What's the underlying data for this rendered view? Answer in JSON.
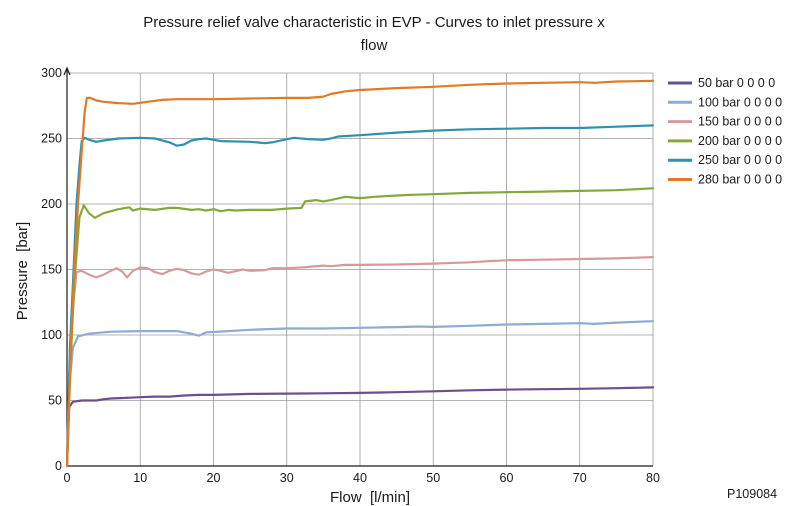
{
  "chart_data": {
    "type": "line",
    "title_lines": [
      "Pressure relief valve characteristic in EVP - Curves to inlet pressure x",
      "flow"
    ],
    "xlabel": "Flow  [l/min]",
    "ylabel": "Pressure  [bar]",
    "xlim": [
      0,
      80
    ],
    "ylim": [
      0,
      300
    ],
    "x_ticks": [
      "0",
      "10",
      "20",
      "30",
      "40",
      "50",
      "60",
      "70",
      "80"
    ],
    "y_ticks": [
      "0",
      "50",
      "100",
      "150",
      "200",
      "250",
      "300"
    ],
    "grid": true,
    "legend_position": "right",
    "reference_code": "P109084",
    "series": [
      {
        "name": "50 bar 0 0 0 0",
        "color": "#6b4f8e",
        "points": [
          [
            0,
            0
          ],
          [
            0.3,
            45
          ],
          [
            0.8,
            49
          ],
          [
            2,
            50
          ],
          [
            4,
            50
          ],
          [
            5,
            51
          ],
          [
            6,
            51.5
          ],
          [
            8,
            52
          ],
          [
            10,
            52.5
          ],
          [
            12,
            53
          ],
          [
            14,
            53
          ],
          [
            16,
            53.8
          ],
          [
            18,
            54.3
          ],
          [
            20,
            54.3
          ],
          [
            22,
            54.6
          ],
          [
            25,
            55
          ],
          [
            30,
            55.3
          ],
          [
            35,
            55.5
          ],
          [
            40,
            55.8
          ],
          [
            45,
            56.3
          ],
          [
            50,
            57
          ],
          [
            55,
            57.8
          ],
          [
            60,
            58.3
          ],
          [
            65,
            58.6
          ],
          [
            70,
            58.9
          ],
          [
            75,
            59.4
          ],
          [
            80,
            60
          ]
        ]
      },
      {
        "name": "100 bar 0 0 0 0",
        "color": "#8faad5",
        "points": [
          [
            0,
            0
          ],
          [
            0.3,
            60
          ],
          [
            0.8,
            90
          ],
          [
            1.5,
            99
          ],
          [
            3,
            101
          ],
          [
            6,
            102.5
          ],
          [
            10,
            103
          ],
          [
            15,
            103
          ],
          [
            17,
            101
          ],
          [
            18,
            99.5
          ],
          [
            19,
            102
          ],
          [
            22,
            103
          ],
          [
            25,
            104
          ],
          [
            30,
            105
          ],
          [
            35,
            105
          ],
          [
            40,
            105.5
          ],
          [
            45,
            106
          ],
          [
            48,
            106.5
          ],
          [
            50,
            106.2
          ],
          [
            55,
            107
          ],
          [
            60,
            108
          ],
          [
            65,
            108.5
          ],
          [
            70,
            109
          ],
          [
            72,
            108.5
          ],
          [
            75,
            109.5
          ],
          [
            80,
            110.5
          ]
        ]
      },
      {
        "name": "150 bar 0 0 0 0",
        "color": "#d69a9a",
        "points": [
          [
            0,
            0
          ],
          [
            0.3,
            70
          ],
          [
            0.8,
            120
          ],
          [
            1.3,
            148
          ],
          [
            2,
            149
          ],
          [
            3,
            146
          ],
          [
            4,
            144
          ],
          [
            5,
            146
          ],
          [
            6,
            149
          ],
          [
            6.8,
            151
          ],
          [
            7.6,
            148
          ],
          [
            8.2,
            144
          ],
          [
            9,
            149
          ],
          [
            10,
            151.5
          ],
          [
            11,
            151
          ],
          [
            12,
            148
          ],
          [
            13,
            146.5
          ],
          [
            14,
            149
          ],
          [
            15,
            150.5
          ],
          [
            16,
            149.5
          ],
          [
            17,
            147
          ],
          [
            18,
            146
          ],
          [
            19,
            148.5
          ],
          [
            20,
            150
          ],
          [
            21,
            149
          ],
          [
            22,
            147.5
          ],
          [
            24,
            150
          ],
          [
            25,
            149
          ],
          [
            27,
            149.5
          ],
          [
            28,
            151
          ],
          [
            30,
            151
          ],
          [
            32,
            151.5
          ],
          [
            35,
            153
          ],
          [
            36,
            152.5
          ],
          [
            38,
            153.5
          ],
          [
            40,
            153.5
          ],
          [
            45,
            153.8
          ],
          [
            50,
            154.5
          ],
          [
            55,
            155.5
          ],
          [
            58,
            156.5
          ],
          [
            60,
            157
          ],
          [
            65,
            157.5
          ],
          [
            70,
            158
          ],
          [
            75,
            158.5
          ],
          [
            80,
            159.5
          ]
        ]
      },
      {
        "name": "200 bar 0 0 0 0",
        "color": "#86a83a",
        "points": [
          [
            0,
            0
          ],
          [
            0.5,
            80
          ],
          [
            1,
            140
          ],
          [
            1.7,
            190
          ],
          [
            2.3,
            199
          ],
          [
            3,
            193
          ],
          [
            3.8,
            189.5
          ],
          [
            5,
            193
          ],
          [
            7,
            196
          ],
          [
            8.5,
            197.5
          ],
          [
            9,
            195
          ],
          [
            10,
            196.5
          ],
          [
            12,
            195.5
          ],
          [
            14,
            197
          ],
          [
            15,
            197
          ],
          [
            17,
            195.5
          ],
          [
            18,
            196
          ],
          [
            19,
            195
          ],
          [
            20,
            196
          ],
          [
            21,
            194.5
          ],
          [
            22,
            195.5
          ],
          [
            23,
            195
          ],
          [
            25,
            195.5
          ],
          [
            28,
            195.5
          ],
          [
            30,
            196.5
          ],
          [
            32,
            197
          ],
          [
            32.5,
            202
          ],
          [
            34,
            203
          ],
          [
            35,
            202
          ],
          [
            36,
            203
          ],
          [
            38,
            205.5
          ],
          [
            40,
            204.5
          ],
          [
            42,
            205.5
          ],
          [
            45,
            206.5
          ],
          [
            47,
            207
          ],
          [
            50,
            207.5
          ],
          [
            55,
            208.5
          ],
          [
            60,
            209
          ],
          [
            65,
            209.5
          ],
          [
            70,
            210
          ],
          [
            75,
            210.5
          ],
          [
            80,
            212
          ]
        ]
      },
      {
        "name": "250 bar 0 0 0 0",
        "color": "#2f91ae",
        "points": [
          [
            0,
            0
          ],
          [
            0.4,
            90
          ],
          [
            0.9,
            150
          ],
          [
            1.3,
            200
          ],
          [
            1.7,
            230
          ],
          [
            2,
            248
          ],
          [
            2.4,
            250.5
          ],
          [
            3,
            249
          ],
          [
            4,
            247.5
          ],
          [
            5,
            248.5
          ],
          [
            7,
            250
          ],
          [
            10,
            250.5
          ],
          [
            12,
            250
          ],
          [
            14,
            247
          ],
          [
            15,
            244.5
          ],
          [
            16,
            245.5
          ],
          [
            17,
            248.5
          ],
          [
            18,
            249.5
          ],
          [
            19,
            250
          ],
          [
            21,
            248
          ],
          [
            25,
            247.5
          ],
          [
            27,
            246.5
          ],
          [
            28,
            247
          ],
          [
            30,
            249.5
          ],
          [
            31,
            250.5
          ],
          [
            33,
            249.5
          ],
          [
            35,
            249
          ],
          [
            36,
            250
          ],
          [
            37,
            251.5
          ],
          [
            40,
            252.5
          ],
          [
            45,
            254.5
          ],
          [
            50,
            256
          ],
          [
            55,
            257
          ],
          [
            60,
            257.5
          ],
          [
            65,
            258
          ],
          [
            70,
            258
          ],
          [
            75,
            259
          ],
          [
            80,
            260
          ]
        ]
      },
      {
        "name": "280 bar 0 0 0 0",
        "color": "#e07b24",
        "points": [
          [
            0,
            0
          ],
          [
            0.5,
            90
          ],
          [
            1,
            150
          ],
          [
            1.5,
            200
          ],
          [
            2,
            240
          ],
          [
            2.4,
            270
          ],
          [
            2.7,
            281
          ],
          [
            3.2,
            281
          ],
          [
            4,
            279
          ],
          [
            5,
            278
          ],
          [
            7,
            277
          ],
          [
            9,
            276.5
          ],
          [
            11,
            278
          ],
          [
            13,
            279.5
          ],
          [
            15,
            280
          ],
          [
            20,
            280
          ],
          [
            25,
            280.5
          ],
          [
            30,
            281
          ],
          [
            33,
            281
          ],
          [
            35,
            282
          ],
          [
            36,
            284
          ],
          [
            38,
            286
          ],
          [
            40,
            287
          ],
          [
            45,
            288.5
          ],
          [
            50,
            289.5
          ],
          [
            55,
            291
          ],
          [
            60,
            292
          ],
          [
            65,
            292.5
          ],
          [
            70,
            293
          ],
          [
            72,
            292.5
          ],
          [
            75,
            293.5
          ],
          [
            80,
            294
          ]
        ]
      }
    ]
  }
}
